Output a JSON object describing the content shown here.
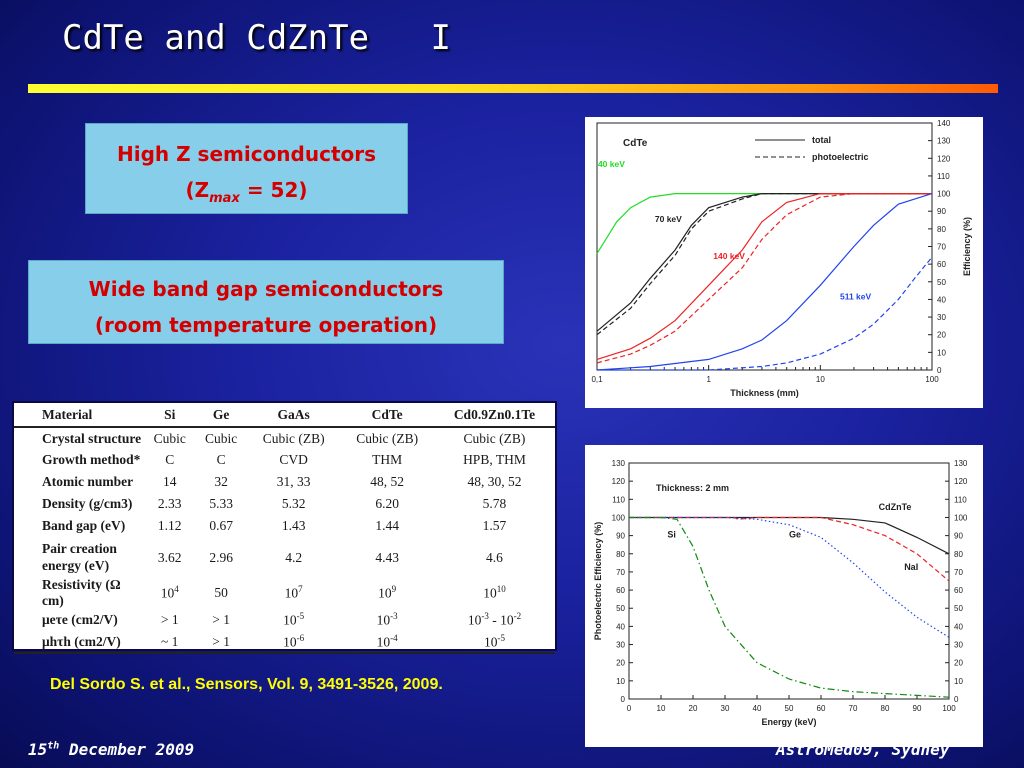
{
  "slide": {
    "title": "CdTe and CdZnTe   I",
    "callout1": {
      "line1": "High Z semiconductors",
      "zmax_open": "(Z",
      "zmax_sub": "max",
      "zmax_close": " = 52)"
    },
    "callout2": {
      "line1": "Wide band gap semiconductors",
      "line2": "(room temperature operation)"
    },
    "citation": "Del Sordo S. et al., Sensors, Vol. 9, 3491-3526, 2009.",
    "footer_date_day": "15",
    "footer_date_sup": "th",
    "footer_date_rest": " December 2009",
    "footer_venue": "AstroMed09, Sydney"
  },
  "table": {
    "headers": [
      "Material",
      "Si",
      "Ge",
      "GaAs",
      "CdTe",
      "Cd0.9Zn0.1Te"
    ],
    "rows": [
      {
        "label": "Crystal structure",
        "values": [
          "Cubic",
          "Cubic",
          "Cubic (ZB)",
          "Cubic (ZB)",
          "Cubic (ZB)"
        ]
      },
      {
        "label": "Growth method*",
        "values": [
          "C",
          "C",
          "CVD",
          "THM",
          "HPB, THM"
        ]
      },
      {
        "label": "Atomic number",
        "values": [
          "14",
          "32",
          "31, 33",
          "48, 52",
          "48, 30, 52"
        ]
      },
      {
        "label": "Density (g/cm3)",
        "values": [
          "2.33",
          "5.33",
          "5.32",
          "6.20",
          "5.78"
        ]
      },
      {
        "label": "Band gap (eV)",
        "values": [
          "1.12",
          "0.67",
          "1.43",
          "1.44",
          "1.57"
        ]
      },
      {
        "label": "Pair creation energy (eV)",
        "values": [
          "3.62",
          "2.96",
          "4.2",
          "4.43",
          "4.6"
        ]
      },
      {
        "label": "Resistivity (Ω cm)",
        "values": [
          "10^4",
          "50",
          "10^7",
          "10^9",
          "10^10"
        ]
      },
      {
        "label": "μeτe (cm2/V)",
        "values": [
          "> 1",
          "> 1",
          "10^-5",
          "10^-3",
          "10^-3 - 10^-2"
        ]
      },
      {
        "label": "μhτh (cm2/V)",
        "values": [
          "~ 1",
          "> 1",
          "10^-6",
          "10^-4",
          "10^-5"
        ]
      }
    ]
  },
  "chart_data": [
    {
      "type": "line",
      "xscale": "log",
      "xlabel": "Thickness (mm)",
      "ylabel": "Efficiency (%)",
      "xlim": [
        0.1,
        100
      ],
      "ylim": [
        0,
        140
      ],
      "xticks": [
        "0,1",
        "1",
        "10",
        "100"
      ],
      "yticks": [
        0,
        10,
        20,
        30,
        40,
        50,
        60,
        70,
        80,
        90,
        100,
        110,
        120,
        130,
        140
      ],
      "panel_label": "CdTe",
      "legend": [
        {
          "label": "total",
          "style": "solid"
        },
        {
          "label": "photoelectric",
          "style": "dashed"
        }
      ],
      "series": [
        {
          "name": "40 keV",
          "color": "#22dd22",
          "style": "solid",
          "x": [
            0.1,
            0.12,
            0.15,
            0.2,
            0.3,
            0.5,
            1,
            2,
            5,
            10,
            100
          ],
          "y": [
            66,
            74,
            84,
            92,
            98,
            100,
            100,
            100,
            100,
            100,
            100
          ]
        },
        {
          "name": "70 keV",
          "color": "#222222",
          "style": "solid",
          "x": [
            0.1,
            0.2,
            0.3,
            0.5,
            0.7,
            1,
            2,
            3,
            5,
            10,
            100
          ],
          "y": [
            22,
            38,
            52,
            68,
            82,
            92,
            98,
            100,
            100,
            100,
            100
          ]
        },
        {
          "name": "70 keV photoelectric",
          "color": "#222222",
          "style": "dashed",
          "x": [
            0.1,
            0.2,
            0.3,
            0.5,
            0.7,
            1,
            2,
            3,
            5,
            10,
            100
          ],
          "y": [
            20,
            35,
            49,
            65,
            80,
            90,
            97,
            100,
            100,
            100,
            100
          ]
        },
        {
          "name": "140 keV",
          "color": "#ee2222",
          "style": "solid",
          "x": [
            0.1,
            0.2,
            0.3,
            0.5,
            1,
            2,
            3,
            5,
            10,
            20,
            100
          ],
          "y": [
            6,
            12,
            18,
            28,
            48,
            68,
            84,
            95,
            100,
            100,
            100
          ]
        },
        {
          "name": "140 keV photoelectric",
          "color": "#ee2222",
          "style": "dashed",
          "x": [
            0.1,
            0.2,
            0.3,
            0.5,
            1,
            2,
            3,
            5,
            10,
            20,
            100
          ],
          "y": [
            4,
            9,
            14,
            22,
            40,
            58,
            74,
            88,
            98,
            100,
            100
          ]
        },
        {
          "name": "511 keV",
          "color": "#2244ee",
          "style": "solid",
          "x": [
            0.1,
            0.3,
            1,
            2,
            3,
            5,
            10,
            20,
            30,
            50,
            100
          ],
          "y": [
            0,
            2,
            6,
            12,
            17,
            28,
            48,
            70,
            82,
            94,
            100
          ]
        },
        {
          "name": "511 keV photoelectric",
          "color": "#2244ee",
          "style": "dashed",
          "x": [
            0.1,
            1,
            3,
            5,
            10,
            20,
            30,
            50,
            70,
            100
          ],
          "y": [
            0,
            0,
            2,
            4,
            9,
            18,
            26,
            40,
            52,
            64
          ]
        }
      ]
    },
    {
      "type": "line",
      "xlabel": "Energy (keV)",
      "ylabel": "Photoelectric Efficiency (%)",
      "xlim": [
        0,
        100
      ],
      "ylim": [
        0,
        130
      ],
      "xticks": [
        0,
        10,
        20,
        30,
        40,
        50,
        60,
        70,
        80,
        90,
        100
      ],
      "yticks": [
        0,
        10,
        20,
        30,
        40,
        50,
        60,
        70,
        80,
        90,
        100,
        110,
        120,
        130
      ],
      "annotation": "Thickness: 2 mm",
      "series": [
        {
          "name": "CdZnTe",
          "color": "#222222",
          "style": "solid",
          "x": [
            0,
            30,
            60,
            70,
            80,
            90,
            100
          ],
          "y": [
            100,
            100,
            100,
            99,
            97,
            89,
            80
          ]
        },
        {
          "name": "NaI",
          "color": "#ee2222",
          "style": "dashed",
          "x": [
            0,
            33,
            34,
            40,
            60,
            70,
            80,
            90,
            100
          ],
          "y": [
            100,
            100,
            99,
            100,
            100,
            96,
            90,
            80,
            65
          ]
        },
        {
          "name": "Ge",
          "color": "#2244ee",
          "style": "dotted",
          "x": [
            0,
            15,
            20,
            30,
            40,
            50,
            60,
            70,
            80,
            90,
            100
          ],
          "y": [
            100,
            100,
            100,
            100,
            99,
            96,
            89,
            75,
            59,
            45,
            34
          ]
        },
        {
          "name": "Si",
          "color": "#118811",
          "style": "dashdot",
          "x": [
            0,
            10,
            15,
            20,
            25,
            30,
            40,
            50,
            60,
            70,
            80,
            90,
            100
          ],
          "y": [
            100,
            100,
            99,
            84,
            60,
            40,
            20,
            11,
            6,
            4,
            3,
            2,
            1
          ]
        }
      ]
    }
  ]
}
